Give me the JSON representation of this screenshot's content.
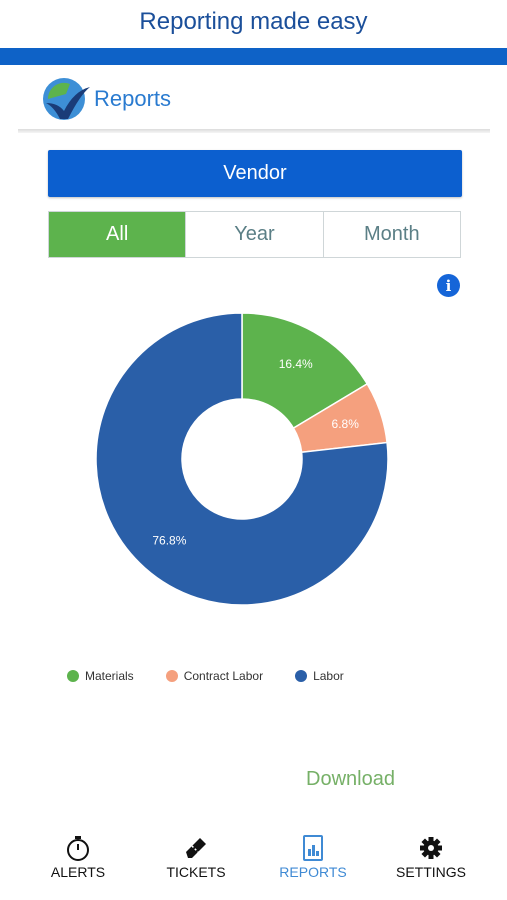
{
  "promo_title": "Reporting made easy",
  "header": {
    "title": "Reports"
  },
  "vendor_button": "Vendor",
  "segments": [
    "All",
    "Year",
    "Month"
  ],
  "active_segment": "All",
  "info_icon": "i",
  "chart_data": {
    "type": "pie",
    "donut": true,
    "slices": [
      {
        "name": "Materials",
        "value": 16.4,
        "label": "16.4%",
        "color": "#5db34d"
      },
      {
        "name": "Contract Labor",
        "value": 6.8,
        "label": "6.8%",
        "color": "#f5a07e"
      },
      {
        "name": "Labor",
        "value": 76.8,
        "label": "76.8%",
        "color": "#2a5fa8"
      }
    ],
    "legend": [
      "Materials",
      "Contract Labor",
      "Labor"
    ],
    "legend_position": "bottom-left"
  },
  "download_label": "Download",
  "tabs": [
    {
      "label": "ALERTS",
      "icon": "stopwatch-icon"
    },
    {
      "label": "TICKETS",
      "icon": "ticket-icon"
    },
    {
      "label": "REPORTS",
      "icon": "report-icon",
      "active": true
    },
    {
      "label": "SETTINGS",
      "icon": "gear-icon"
    }
  ]
}
